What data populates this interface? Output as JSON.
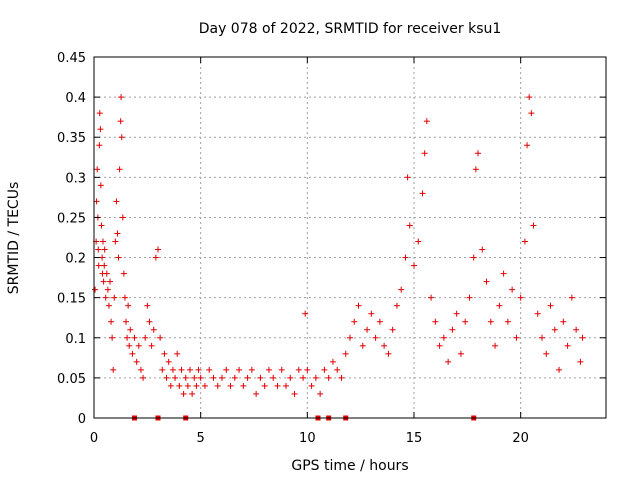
{
  "chart_data": {
    "type": "scatter",
    "title": "Day 078 of 2022, SRMTID for receiver ksu1",
    "xlabel": "GPS time / hours",
    "ylabel": "SRMTID / TECUs",
    "xlim": [
      0,
      24
    ],
    "ylim": [
      0,
      0.45
    ],
    "x_ticks": [
      0,
      5,
      10,
      15,
      20
    ],
    "x_tick_labels": [
      "0",
      "5",
      "10",
      "15",
      "20"
    ],
    "y_ticks": [
      0,
      0.05,
      0.1,
      0.15,
      0.2,
      0.25,
      0.3,
      0.35,
      0.4,
      0.45
    ],
    "y_tick_labels": [
      "0",
      "0.05",
      "0.1",
      "0.15",
      "0.2",
      "0.25",
      "0.3",
      "0.35",
      "0.4",
      "0.45"
    ],
    "grid": true,
    "marker": "plus",
    "color": "#e00000",
    "series": [
      {
        "name": "SRMTID ksu1",
        "points": [
          [
            0.05,
            0.16
          ],
          [
            0.1,
            0.22
          ],
          [
            0.12,
            0.27
          ],
          [
            0.15,
            0.31
          ],
          [
            0.18,
            0.25
          ],
          [
            0.2,
            0.21
          ],
          [
            0.22,
            0.19
          ],
          [
            0.25,
            0.34
          ],
          [
            0.27,
            0.38
          ],
          [
            0.3,
            0.36
          ],
          [
            0.32,
            0.29
          ],
          [
            0.35,
            0.24
          ],
          [
            0.38,
            0.2
          ],
          [
            0.4,
            0.18
          ],
          [
            0.42,
            0.22
          ],
          [
            0.45,
            0.17
          ],
          [
            0.48,
            0.19
          ],
          [
            0.5,
            0.21
          ],
          [
            0.55,
            0.15
          ],
          [
            0.6,
            0.18
          ],
          [
            0.65,
            0.16
          ],
          [
            0.7,
            0.14
          ],
          [
            0.75,
            0.17
          ],
          [
            0.8,
            0.12
          ],
          [
            0.85,
            0.1
          ],
          [
            0.9,
            0.06
          ],
          [
            0.95,
            0.15
          ],
          [
            1.0,
            0.22
          ],
          [
            1.05,
            0.27
          ],
          [
            1.1,
            0.23
          ],
          [
            1.15,
            0.2
          ],
          [
            1.2,
            0.31
          ],
          [
            1.25,
            0.37
          ],
          [
            1.27,
            0.4
          ],
          [
            1.3,
            0.35
          ],
          [
            1.35,
            0.25
          ],
          [
            1.4,
            0.18
          ],
          [
            1.45,
            0.15
          ],
          [
            1.5,
            0.12
          ],
          [
            1.55,
            0.1
          ],
          [
            1.6,
            0.14
          ],
          [
            1.65,
            0.09
          ],
          [
            1.7,
            0.11
          ],
          [
            1.8,
            0.08
          ],
          [
            1.9,
            0.1
          ],
          [
            2.0,
            0.07
          ],
          [
            2.1,
            0.09
          ],
          [
            2.2,
            0.06
          ],
          [
            2.3,
            0.05
          ],
          [
            2.4,
            0.1
          ],
          [
            2.5,
            0.14
          ],
          [
            2.6,
            0.12
          ],
          [
            2.7,
            0.09
          ],
          [
            2.8,
            0.11
          ],
          [
            2.9,
            0.2
          ],
          [
            3.0,
            0.21
          ],
          [
            3.1,
            0.1
          ],
          [
            3.2,
            0.06
          ],
          [
            3.3,
            0.08
          ],
          [
            3.4,
            0.05
          ],
          [
            3.5,
            0.07
          ],
          [
            3.6,
            0.04
          ],
          [
            3.7,
            0.06
          ],
          [
            3.8,
            0.05
          ],
          [
            3.9,
            0.08
          ],
          [
            4.0,
            0.04
          ],
          [
            4.1,
            0.06
          ],
          [
            4.2,
            0.03
          ],
          [
            4.3,
            0.05
          ],
          [
            4.4,
            0.04
          ],
          [
            4.5,
            0.06
          ],
          [
            4.6,
            0.03
          ],
          [
            4.7,
            0.05
          ],
          [
            4.8,
            0.04
          ],
          [
            4.9,
            0.06
          ],
          [
            5.0,
            0.05
          ],
          [
            5.2,
            0.04
          ],
          [
            5.4,
            0.06
          ],
          [
            5.6,
            0.05
          ],
          [
            5.8,
            0.04
          ],
          [
            6.0,
            0.05
          ],
          [
            6.2,
            0.06
          ],
          [
            6.4,
            0.04
          ],
          [
            6.6,
            0.05
          ],
          [
            6.8,
            0.06
          ],
          [
            7.0,
            0.04
          ],
          [
            7.2,
            0.05
          ],
          [
            7.4,
            0.06
          ],
          [
            7.6,
            0.03
          ],
          [
            7.8,
            0.05
          ],
          [
            8.0,
            0.04
          ],
          [
            8.2,
            0.06
          ],
          [
            8.4,
            0.05
          ],
          [
            8.6,
            0.04
          ],
          [
            8.8,
            0.06
          ],
          [
            9.0,
            0.04
          ],
          [
            9.2,
            0.05
          ],
          [
            9.4,
            0.03
          ],
          [
            9.6,
            0.06
          ],
          [
            9.8,
            0.05
          ],
          [
            9.9,
            0.13
          ],
          [
            10.0,
            0.06
          ],
          [
            10.2,
            0.04
          ],
          [
            10.4,
            0.05
          ],
          [
            10.6,
            0.03
          ],
          [
            10.8,
            0.06
          ],
          [
            11.0,
            0.05
          ],
          [
            11.2,
            0.07
          ],
          [
            11.4,
            0.06
          ],
          [
            11.6,
            0.05
          ],
          [
            11.8,
            0.08
          ],
          [
            12.0,
            0.1
          ],
          [
            12.2,
            0.12
          ],
          [
            12.4,
            0.14
          ],
          [
            12.6,
            0.09
          ],
          [
            12.8,
            0.11
          ],
          [
            13.0,
            0.13
          ],
          [
            13.2,
            0.1
          ],
          [
            13.4,
            0.12
          ],
          [
            13.6,
            0.09
          ],
          [
            13.8,
            0.08
          ],
          [
            14.0,
            0.11
          ],
          [
            14.2,
            0.14
          ],
          [
            14.4,
            0.16
          ],
          [
            14.6,
            0.2
          ],
          [
            14.7,
            0.3
          ],
          [
            14.8,
            0.24
          ],
          [
            15.0,
            0.19
          ],
          [
            15.2,
            0.22
          ],
          [
            15.4,
            0.28
          ],
          [
            15.5,
            0.33
          ],
          [
            15.6,
            0.37
          ],
          [
            15.8,
            0.15
          ],
          [
            16.0,
            0.12
          ],
          [
            16.2,
            0.09
          ],
          [
            16.4,
            0.1
          ],
          [
            16.6,
            0.07
          ],
          [
            16.8,
            0.11
          ],
          [
            17.0,
            0.13
          ],
          [
            17.2,
            0.08
          ],
          [
            17.4,
            0.12
          ],
          [
            17.6,
            0.15
          ],
          [
            17.8,
            0.2
          ],
          [
            17.9,
            0.31
          ],
          [
            18.0,
            0.33
          ],
          [
            18.2,
            0.21
          ],
          [
            18.4,
            0.17
          ],
          [
            18.6,
            0.12
          ],
          [
            18.8,
            0.09
          ],
          [
            19.0,
            0.14
          ],
          [
            19.2,
            0.18
          ],
          [
            19.4,
            0.12
          ],
          [
            19.6,
            0.16
          ],
          [
            19.8,
            0.1
          ],
          [
            20.0,
            0.15
          ],
          [
            20.2,
            0.22
          ],
          [
            20.3,
            0.34
          ],
          [
            20.4,
            0.4
          ],
          [
            20.5,
            0.38
          ],
          [
            20.6,
            0.24
          ],
          [
            20.8,
            0.13
          ],
          [
            21.0,
            0.1
          ],
          [
            21.2,
            0.08
          ],
          [
            21.4,
            0.14
          ],
          [
            21.6,
            0.11
          ],
          [
            21.8,
            0.06
          ],
          [
            22.0,
            0.12
          ],
          [
            22.2,
            0.09
          ],
          [
            22.4,
            0.15
          ],
          [
            22.6,
            0.11
          ],
          [
            22.8,
            0.07
          ],
          [
            22.9,
            0.1
          ]
        ]
      }
    ],
    "baseline_markers_x": [
      1.9,
      3.0,
      4.3,
      10.5,
      11.0,
      11.8,
      17.8
    ]
  }
}
